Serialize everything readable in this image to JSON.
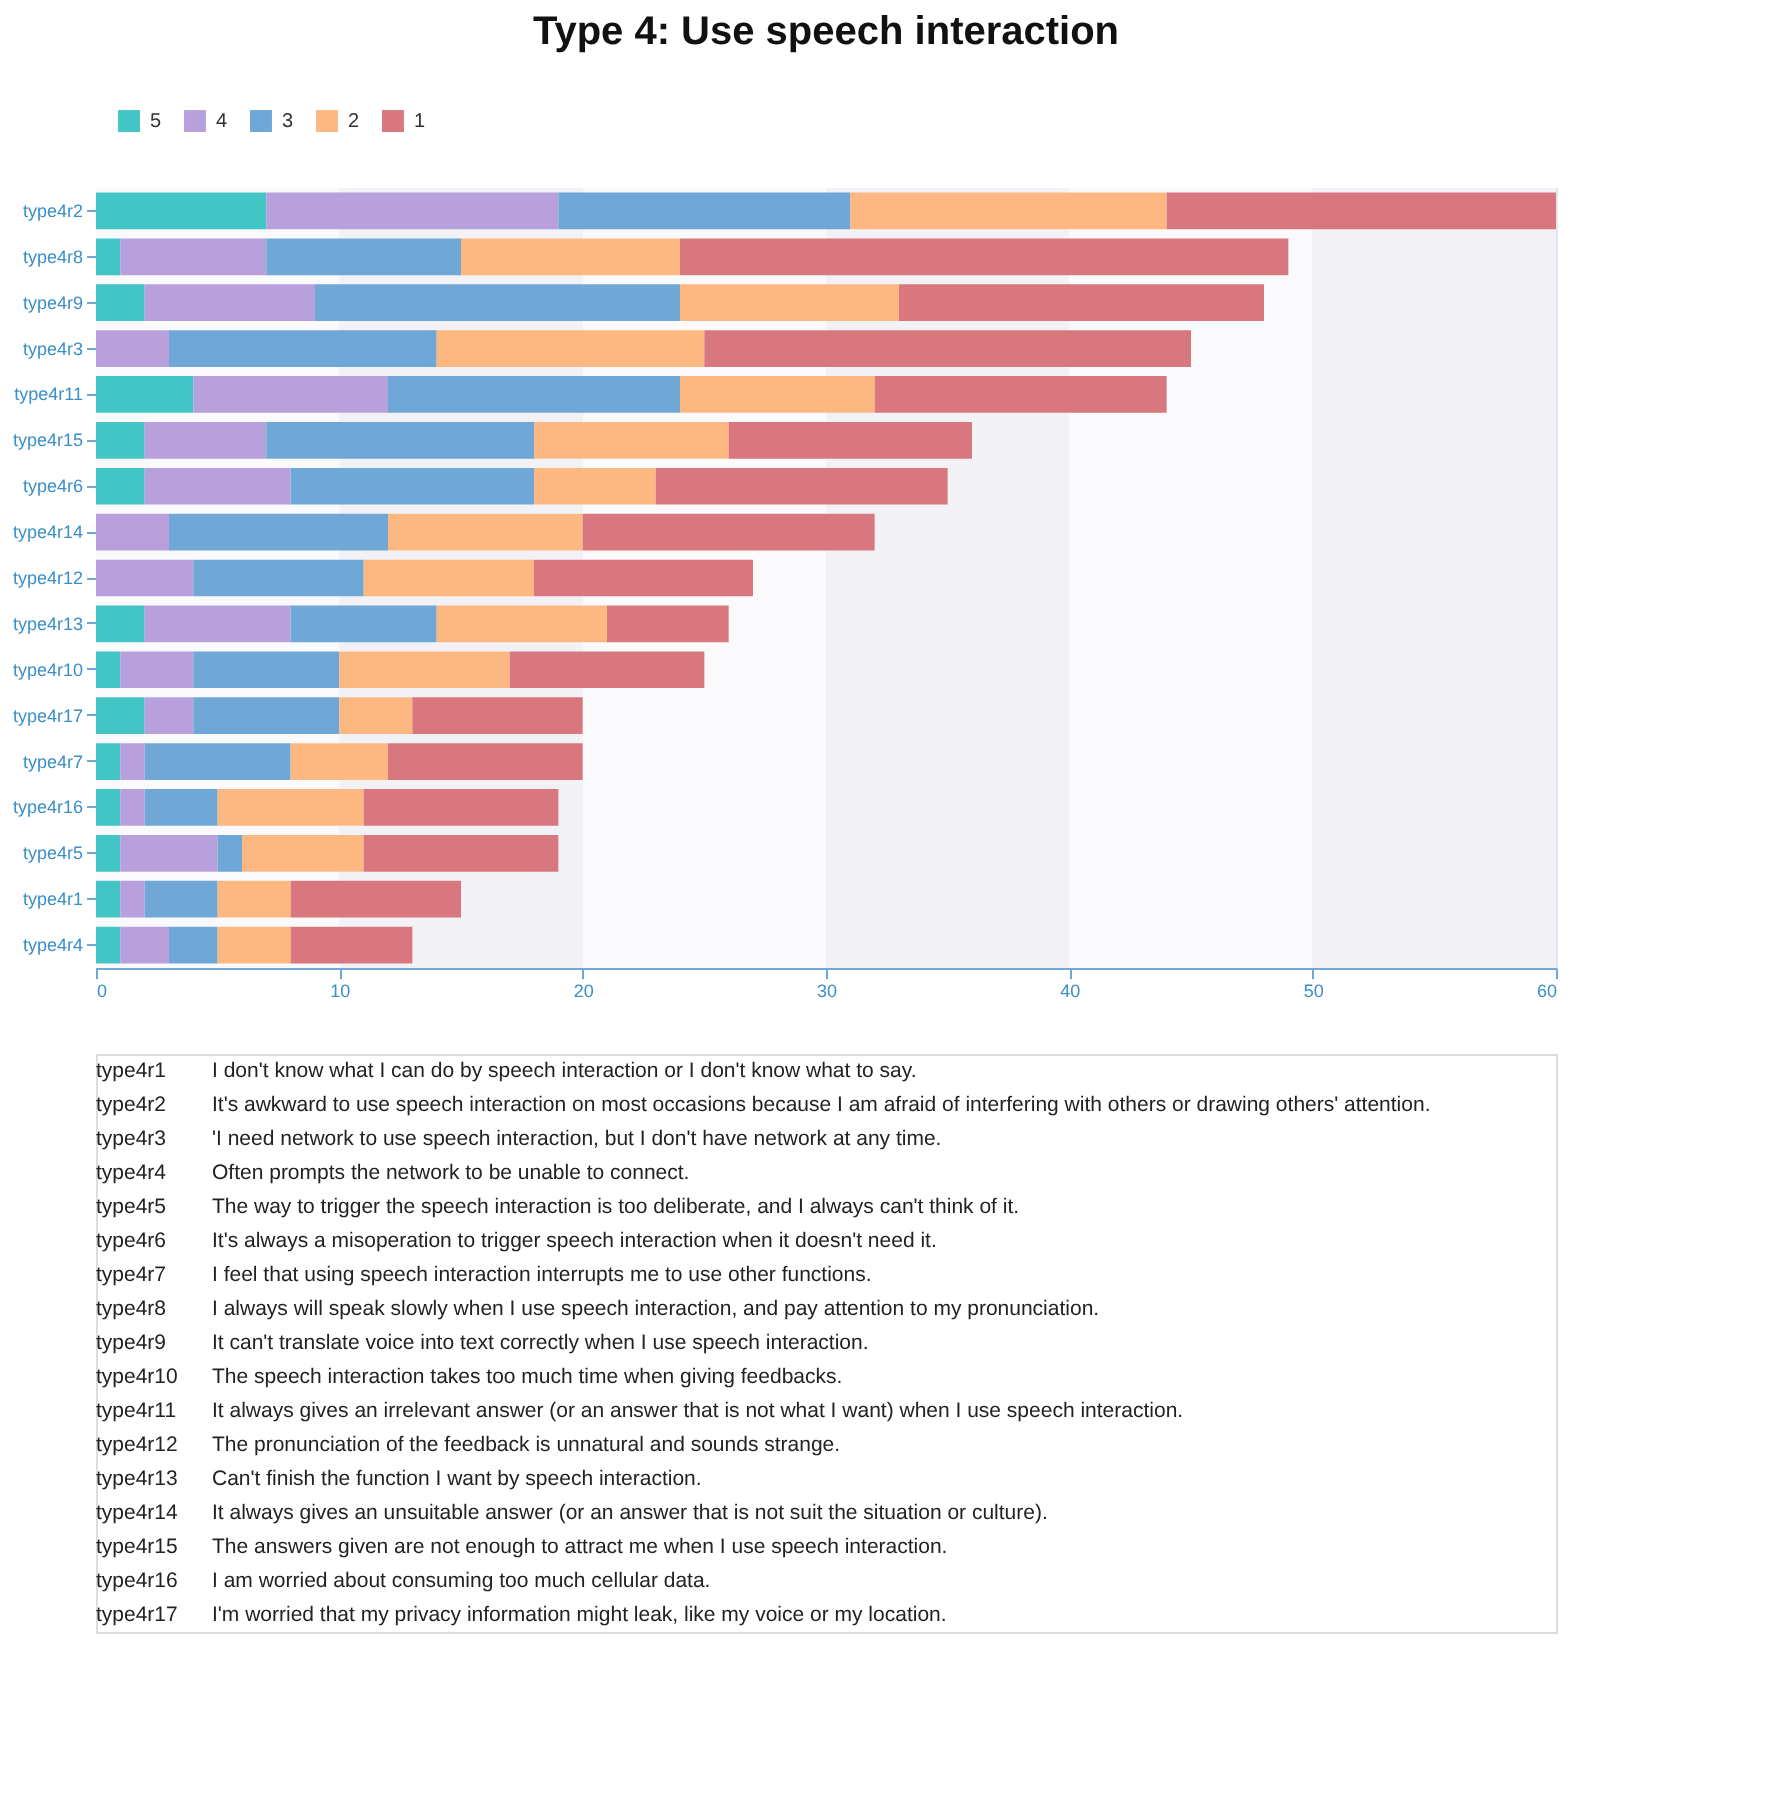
{
  "chart_data": {
    "type": "bar",
    "orientation": "horizontal",
    "stacked": true,
    "title": "Type 4: Use speech interaction",
    "categories": [
      "type4r2",
      "type4r8",
      "type4r9",
      "type4r3",
      "type4r11",
      "type4r15",
      "type4r6",
      "type4r14",
      "type4r12",
      "type4r13",
      "type4r10",
      "type4r17",
      "type4r7",
      "type4r16",
      "type4r5",
      "type4r1",
      "type4r4"
    ],
    "series": [
      {
        "name": "5",
        "color": "#44c5c5",
        "values": [
          7,
          1,
          2,
          0,
          4,
          2,
          2,
          0,
          0,
          2,
          1,
          2,
          1,
          1,
          1,
          1,
          1
        ]
      },
      {
        "name": "4",
        "color": "#b8a0dc",
        "values": [
          12,
          6,
          7,
          3,
          8,
          5,
          6,
          3,
          4,
          6,
          3,
          2,
          1,
          1,
          4,
          1,
          2
        ]
      },
      {
        "name": "3",
        "color": "#6fa8d6",
        "values": [
          12,
          8,
          15,
          11,
          12,
          11,
          10,
          9,
          7,
          6,
          6,
          6,
          6,
          3,
          1,
          3,
          2
        ]
      },
      {
        "name": "2",
        "color": "#fdb882",
        "values": [
          13,
          9,
          9,
          11,
          8,
          8,
          5,
          8,
          7,
          7,
          7,
          3,
          4,
          6,
          5,
          3,
          3
        ]
      },
      {
        "name": "1",
        "color": "#d8777e",
        "values": [
          16,
          25,
          15,
          20,
          12,
          10,
          12,
          12,
          9,
          5,
          8,
          7,
          8,
          8,
          8,
          7,
          5
        ]
      }
    ],
    "xlim": [
      0,
      60
    ],
    "xticks": [
      0,
      10,
      20,
      30,
      40,
      50,
      60
    ],
    "grid": "x",
    "legend": "top",
    "annotations": [
      "type4r1 I don't know what I can do by speech interaction or I don't know what to say.",
      "type4r2 It's awkward to use speech interaction on most occasions because I am afraid of interfering with others or drawing others' attention.",
      "type4r3 'I need network to use speech interaction, but I don't have network at any time.",
      "type4r4 Often prompts the network to be unable to connect.",
      "type4r5 The way to trigger the speech interaction is too deliberate, and I always can't think of it.",
      "type4r6 It's always a misoperation to trigger speech interaction when it doesn't need it.",
      "type4r7 I feel that using speech interaction interrupts me to use other functions.",
      "type4r8 I always will speak slowly when I use speech interaction, and pay attention to my pronunciation.",
      "type4r9 It can't translate voice into text correctly when I use speech interaction.",
      "type4r10 The speech interaction takes too much time when giving feedbacks.",
      "type4r11 It always gives an irrelevant answer (or an answer that is not what I want) when I use speech interaction.",
      "type4r12 The pronunciation of the feedback is unnatural and sounds strange.",
      "type4r13 Can't finish the function I want by speech interaction.",
      "type4r14 It always gives an unsuitable answer (or an answer that is not suit the situation or culture).",
      "type4r15 The answers given are not enough to attract me when I use speech interaction.",
      "type4r16 I am worried about consuming too much cellular data.",
      "type4r17 I'm worried that my privacy information might leak, like my voice or my location."
    ]
  }
}
